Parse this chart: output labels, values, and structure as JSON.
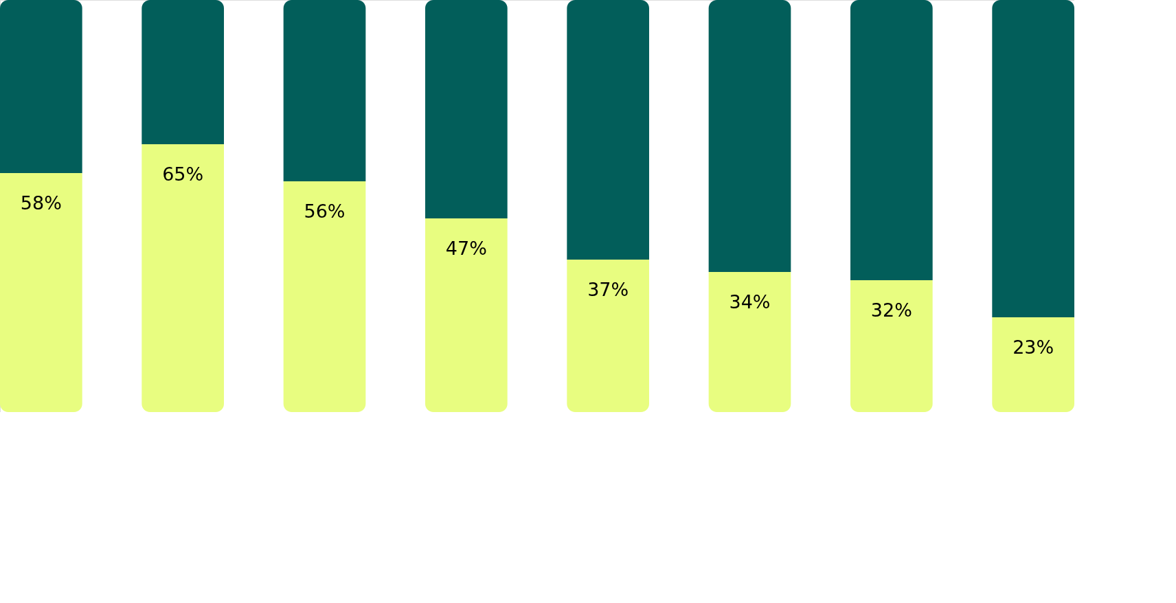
{
  "chart_data": {
    "type": "bar",
    "stacked": true,
    "categories": [
      null,
      null,
      null,
      null,
      null,
      null,
      null,
      null
    ],
    "series": [
      {
        "color": "#e8fd80",
        "values": [
          58,
          65,
          56,
          47,
          37,
          34,
          32,
          23
        ],
        "value_labels": [
          "58%",
          "65%",
          "56%",
          "47%",
          "37%",
          "34%",
          "32%",
          "23%"
        ]
      },
      {
        "color": "#025e5a",
        "values": [
          42,
          35,
          44,
          53,
          63,
          66,
          68,
          77
        ]
      }
    ]
  }
}
